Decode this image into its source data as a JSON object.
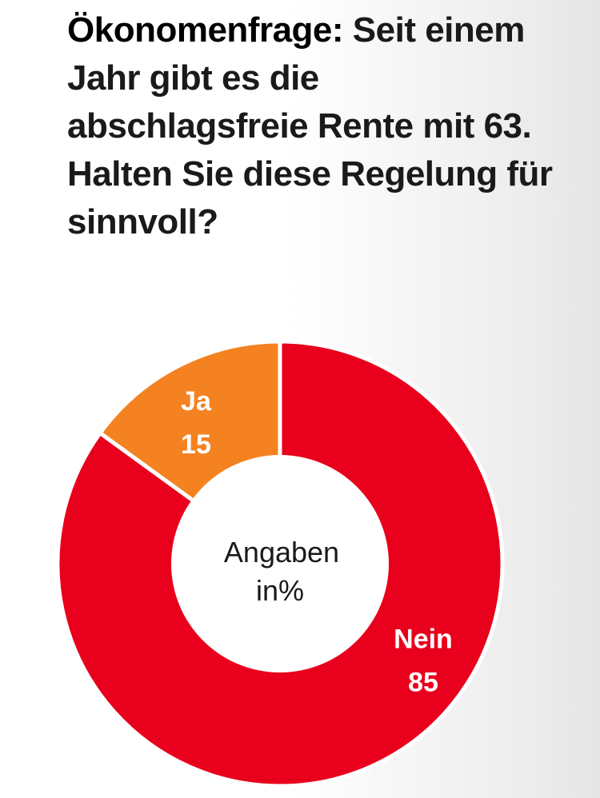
{
  "question": {
    "lead": "Ökonomenfrage:",
    "text": "Seit einem Jahr gibt es die abschlagsfreie Rente mit 63. Halten Sie diese Regelung für sinnvoll?"
  },
  "chart_data": {
    "type": "pie",
    "variant": "donut",
    "title": "Ökonomenfrage: Seit einem Jahr gibt es die abschlagsfreie Rente mit 63. Halten Sie diese Regelung für sinnvoll?",
    "center_text": [
      "Angaben",
      "in%"
    ],
    "unit": "%",
    "slices": [
      {
        "label": "Ja",
        "value": 15,
        "color": "#f58220"
      },
      {
        "label": "Nein",
        "value": 85,
        "color": "#e8001c"
      }
    ]
  }
}
